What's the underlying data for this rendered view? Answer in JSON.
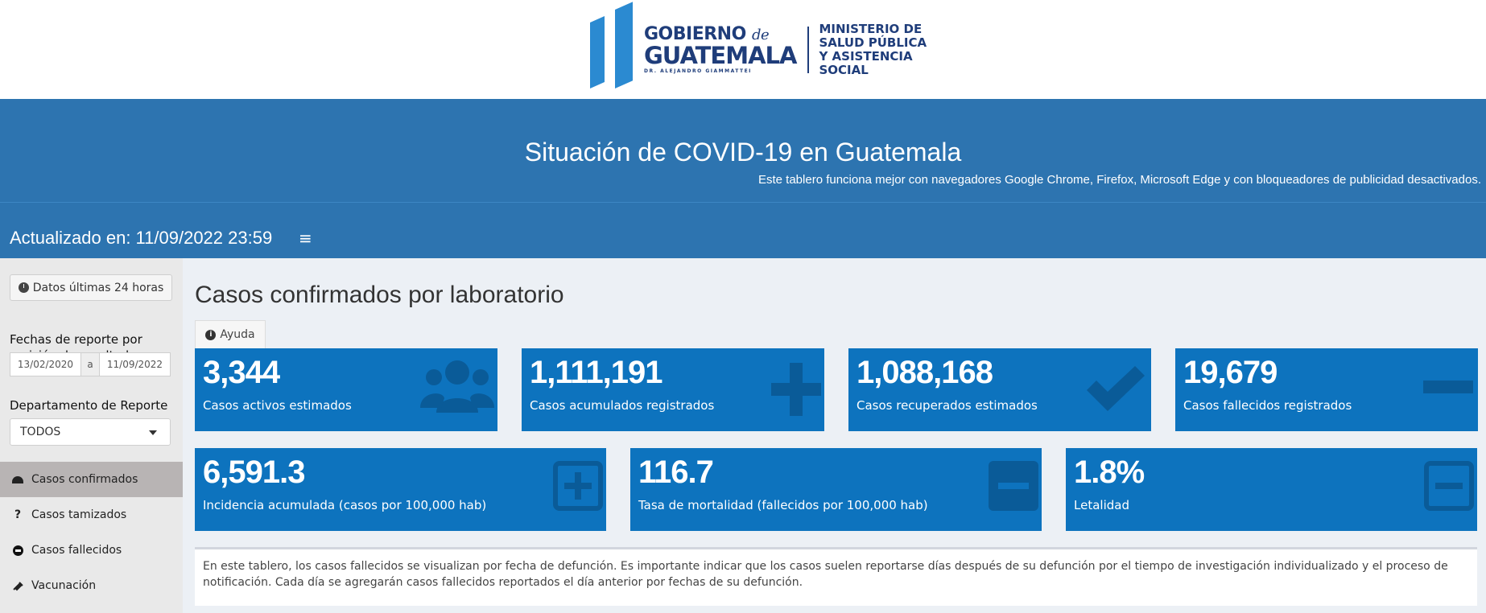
{
  "header": {
    "logo_gobierno": "GOBIERNO",
    "logo_de": "de",
    "logo_guatemala": "GUATEMALA",
    "logo_president": "DR. ALEJANDRO GIAMMATTEI",
    "ministry_line1": "MINISTERIO DE",
    "ministry_line2": "SALUD PÚBLICA",
    "ministry_line3": "Y ASISTENCIA",
    "ministry_line4": "SOCIAL"
  },
  "banner": {
    "title": "Situación de COVID-19 en Guatemala",
    "subtitle": "Este tablero funciona mejor con navegadores Google Chrome, Firefox, Microsoft Edge y con bloqueadores de publicidad desactivados.",
    "updated": "Actualizado en: 11/09/2022 23:59",
    "menu_icon": "≡"
  },
  "sidebar": {
    "btn_24h": "Datos últimas 24 horas",
    "dates_label": "Fechas de reporte por emisión de resultados",
    "date_from": "13/02/2020",
    "date_sep": "a",
    "date_to": "11/09/2022",
    "dept_label": "Departamento de Reporte",
    "dept_value": "TODOS",
    "nav": [
      {
        "label": "Casos confirmados",
        "icon": "gauge-icon"
      },
      {
        "label": "Casos tamizados",
        "icon": "question-icon"
      },
      {
        "label": "Casos fallecidos",
        "icon": "minus-circle-icon"
      },
      {
        "label": "Vacunación",
        "icon": "syringe-icon"
      }
    ]
  },
  "main": {
    "title": "Casos confirmados por laboratorio",
    "help": "Ayuda",
    "boxes_row1": [
      {
        "value": "3,344",
        "label": "Casos activos estimados",
        "icon": "users-icon"
      },
      {
        "value": "1,111,191",
        "label": "Casos acumulados registrados",
        "icon": "plus-icon"
      },
      {
        "value": "1,088,168",
        "label": "Casos recuperados estimados",
        "icon": "check-icon"
      },
      {
        "value": "19,679",
        "label": "Casos fallecidos registrados",
        "icon": "minus-icon"
      }
    ],
    "boxes_row2": [
      {
        "value": "6,591.3",
        "label": "Incidencia acumulada (casos por 100,000 hab)",
        "icon": "plus-square-icon"
      },
      {
        "value": "116.7",
        "label": "Tasa de mortalidad (fallecidos por 100,000 hab)",
        "icon": "minus-square-icon"
      },
      {
        "value": "1.8%",
        "label": "Letalidad",
        "icon": "minus-square-outline-icon"
      }
    ],
    "note": "En este tablero, los casos fallecidos se visualizan por fecha de defunción. Es importante indicar que los casos suelen reportarse días después de su defunción por el tiempo de investigación individualizado y el proceso de notificación. Cada día se agregarán casos fallecidos reportados el día anterior por fechas de su defunción."
  },
  "colors": {
    "banner": "#2d74b0",
    "box": "#0d73be",
    "box_icon": "#0a5b98",
    "logo_blue": "#2b8ad1",
    "logo_navy": "#1f3d7a"
  }
}
